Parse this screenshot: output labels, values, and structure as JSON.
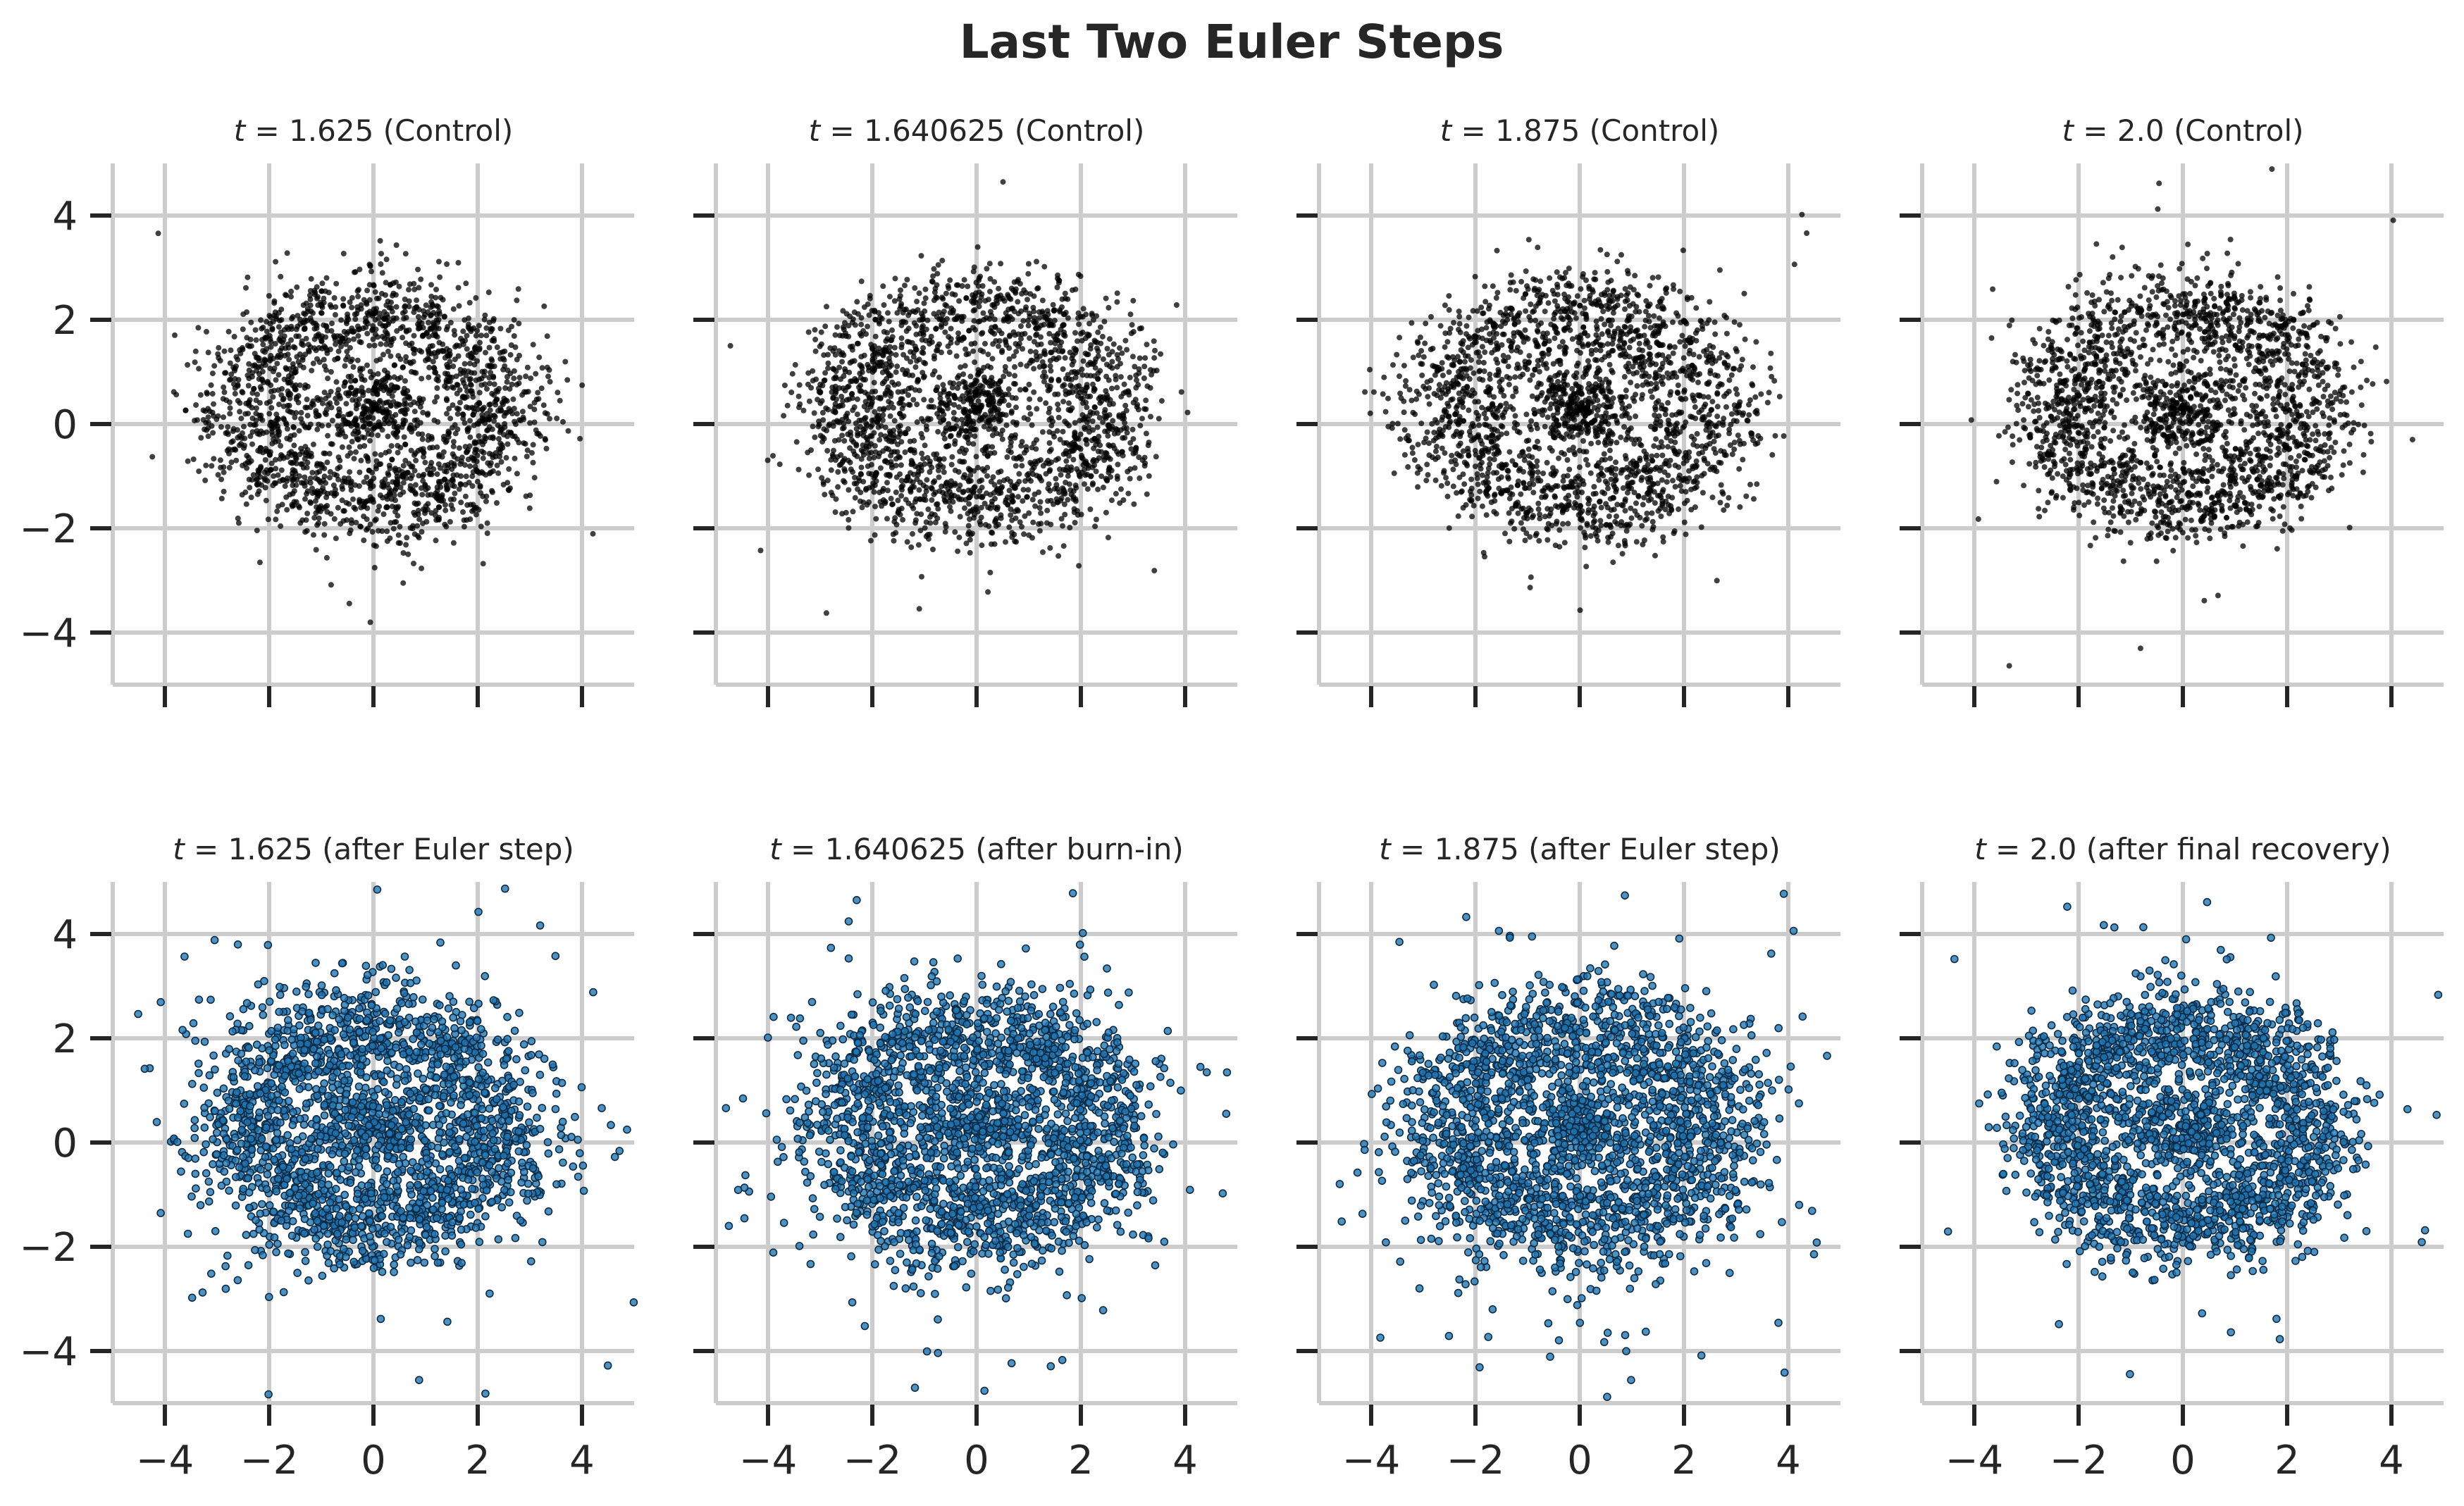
{
  "figure": {
    "title": "Last Two Euler Steps"
  },
  "colors": {
    "control_points": "#000000",
    "euler_points_fill": "#1f77b4",
    "euler_points_edge": "#0d2b45",
    "grid": "#cccccc",
    "text": "#262626"
  },
  "chart_data": [
    {
      "type": "scatter",
      "title_italic": "t",
      "title_rest": " = 1.625 (Control)",
      "style": "control",
      "center": [
        0.0,
        0.3
      ],
      "ring_radius": 2.1,
      "hole_radius": 0.7,
      "spread_outer": 0.55,
      "outliers": 0.02,
      "n_points": 2200,
      "xlim": [
        -5,
        5
      ],
      "ylim": [
        -5,
        5
      ],
      "xticks": [
        -4,
        -2,
        0,
        2,
        4
      ],
      "yticks": [
        -4,
        -2,
        0,
        2,
        4
      ],
      "show_xticklabels": false,
      "show_yticklabels": true,
      "grid": true
    },
    {
      "type": "scatter",
      "title_italic": "t",
      "title_rest": " = 1.640625 (Control)",
      "style": "control",
      "center": [
        0.0,
        0.3
      ],
      "ring_radius": 2.2,
      "hole_radius": 0.75,
      "spread_outer": 0.55,
      "outliers": 0.02,
      "n_points": 2200,
      "xlim": [
        -5,
        5
      ],
      "ylim": [
        -5,
        5
      ],
      "xticks": [
        -4,
        -2,
        0,
        2,
        4
      ],
      "yticks": [
        -4,
        -2,
        0,
        2,
        4
      ],
      "show_xticklabels": false,
      "show_yticklabels": false,
      "grid": true
    },
    {
      "type": "scatter",
      "title_italic": "t",
      "title_rest": " = 1.875 (Control)",
      "style": "control",
      "center": [
        0.0,
        0.3
      ],
      "ring_radius": 2.2,
      "hole_radius": 0.7,
      "spread_outer": 0.55,
      "outliers": 0.02,
      "n_points": 2200,
      "xlim": [
        -5,
        5
      ],
      "ylim": [
        -5,
        5
      ],
      "xticks": [
        -4,
        -2,
        0,
        2,
        4
      ],
      "yticks": [
        -4,
        -2,
        0,
        2,
        4
      ],
      "show_xticklabels": false,
      "show_yticklabels": false,
      "grid": true
    },
    {
      "type": "scatter",
      "title_italic": "t",
      "title_rest": " = 2.0 (Control)",
      "style": "control",
      "center": [
        0.0,
        0.3
      ],
      "ring_radius": 2.1,
      "hole_radius": 0.75,
      "spread_outer": 0.55,
      "outliers": 0.02,
      "n_points": 2200,
      "xlim": [
        -5,
        5
      ],
      "ylim": [
        -5,
        5
      ],
      "xticks": [
        -4,
        -2,
        0,
        2,
        4
      ],
      "yticks": [
        -4,
        -2,
        0,
        2,
        4
      ],
      "show_xticklabels": false,
      "show_yticklabels": false,
      "grid": true
    },
    {
      "type": "scatter",
      "title_italic": "t",
      "title_rest": " = 1.625 (after Euler step)",
      "style": "euler",
      "center": [
        0.0,
        0.3
      ],
      "ring_radius": 2.1,
      "hole_radius": 0.8,
      "spread_outer": 0.8,
      "outliers": 0.1,
      "n_points": 2200,
      "xlim": [
        -5,
        5
      ],
      "ylim": [
        -5,
        5
      ],
      "xticks": [
        -4,
        -2,
        0,
        2,
        4
      ],
      "yticks": [
        -4,
        -2,
        0,
        2,
        4
      ],
      "show_xticklabels": true,
      "show_yticklabels": true,
      "grid": true
    },
    {
      "type": "scatter",
      "title_italic": "t",
      "title_rest": " = 1.640625 (after burn-in)",
      "style": "euler",
      "center": [
        0.0,
        0.3
      ],
      "ring_radius": 2.2,
      "hole_radius": 0.8,
      "spread_outer": 0.8,
      "outliers": 0.1,
      "n_points": 2200,
      "xlim": [
        -5,
        5
      ],
      "ylim": [
        -5,
        5
      ],
      "xticks": [
        -4,
        -2,
        0,
        2,
        4
      ],
      "yticks": [
        -4,
        -2,
        0,
        2,
        4
      ],
      "show_xticklabels": true,
      "show_yticklabels": false,
      "grid": true
    },
    {
      "type": "scatter",
      "title_italic": "t",
      "title_rest": " = 1.875 (after Euler step)",
      "style": "euler",
      "center": [
        0.0,
        0.3
      ],
      "ring_radius": 2.2,
      "hole_radius": 0.8,
      "spread_outer": 0.85,
      "outliers": 0.12,
      "n_points": 2200,
      "xlim": [
        -5,
        5
      ],
      "ylim": [
        -5,
        5
      ],
      "xticks": [
        -4,
        -2,
        0,
        2,
        4
      ],
      "yticks": [
        -4,
        -2,
        0,
        2,
        4
      ],
      "show_xticklabels": true,
      "show_yticklabels": false,
      "grid": true
    },
    {
      "type": "scatter",
      "title_italic": "t",
      "title_rest": " = 2.0 (after final recovery)",
      "style": "euler",
      "center": [
        0.0,
        0.3
      ],
      "ring_radius": 2.1,
      "hole_radius": 0.8,
      "spread_outer": 0.6,
      "outliers": 0.05,
      "n_points": 2200,
      "xlim": [
        -5,
        5
      ],
      "ylim": [
        -5,
        5
      ],
      "xticks": [
        -4,
        -2,
        0,
        2,
        4
      ],
      "yticks": [
        -4,
        -2,
        0,
        2,
        4
      ],
      "show_xticklabels": true,
      "show_yticklabels": false,
      "grid": true
    }
  ]
}
